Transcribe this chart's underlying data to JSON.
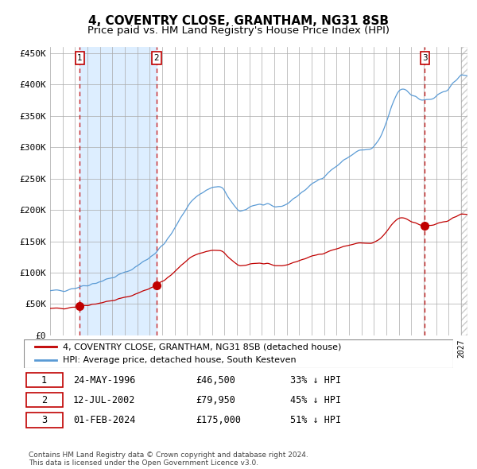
{
  "title": "4, COVENTRY CLOSE, GRANTHAM, NG31 8SB",
  "subtitle": "Price paid vs. HM Land Registry's House Price Index (HPI)",
  "ylim": [
    0,
    460000
  ],
  "yticks": [
    0,
    50000,
    100000,
    150000,
    200000,
    250000,
    300000,
    350000,
    400000,
    450000
  ],
  "ytick_labels": [
    "£0",
    "£50K",
    "£100K",
    "£150K",
    "£200K",
    "£250K",
    "£300K",
    "£350K",
    "£400K",
    "£450K"
  ],
  "xlim_start": 1994.0,
  "xlim_end": 2027.5,
  "hpi_color": "#5B9BD5",
  "price_color": "#C00000",
  "bg_color": "#FFFFFF",
  "plot_bg_color": "#FFFFFF",
  "grid_color": "#AAAAAA",
  "shade_color": "#DDEEFF",
  "sale1_year": 1996.388,
  "sale1_price": 46500,
  "sale2_year": 2002.527,
  "sale2_price": 79950,
  "sale3_year": 2024.083,
  "sale3_price": 175000,
  "legend_line1": "4, COVENTRY CLOSE, GRANTHAM, NG31 8SB (detached house)",
  "legend_line2": "HPI: Average price, detached house, South Kesteven",
  "table_rows": [
    [
      "1",
      "24-MAY-1996",
      "£46,500",
      "33% ↓ HPI"
    ],
    [
      "2",
      "12-JUL-2002",
      "£79,950",
      "45% ↓ HPI"
    ],
    [
      "3",
      "01-FEB-2024",
      "£175,000",
      "51% ↓ HPI"
    ]
  ],
  "footnote": "Contains HM Land Registry data © Crown copyright and database right 2024.\nThis data is licensed under the Open Government Licence v3.0.",
  "title_fontsize": 11,
  "subtitle_fontsize": 9.5,
  "tick_fontsize": 8.0,
  "legend_fontsize": 8.0,
  "table_fontsize": 8.5,
  "hpi_keypoints_x": [
    1994,
    1996,
    1998,
    2000,
    2002,
    2004,
    2005,
    2006,
    2007,
    2008,
    2009,
    2010,
    2011,
    2012,
    2013,
    2014,
    2015,
    2016,
    2017,
    2018,
    2019,
    2020,
    2021,
    2022,
    2023,
    2024,
    2025,
    2026,
    2027
  ],
  "hpi_keypoints_y": [
    70000,
    76000,
    86000,
    100000,
    125000,
    170000,
    205000,
    225000,
    235000,
    230000,
    200000,
    205000,
    208000,
    205000,
    210000,
    225000,
    240000,
    255000,
    270000,
    285000,
    295000,
    300000,
    340000,
    390000,
    385000,
    375000,
    380000,
    395000,
    415000
  ]
}
